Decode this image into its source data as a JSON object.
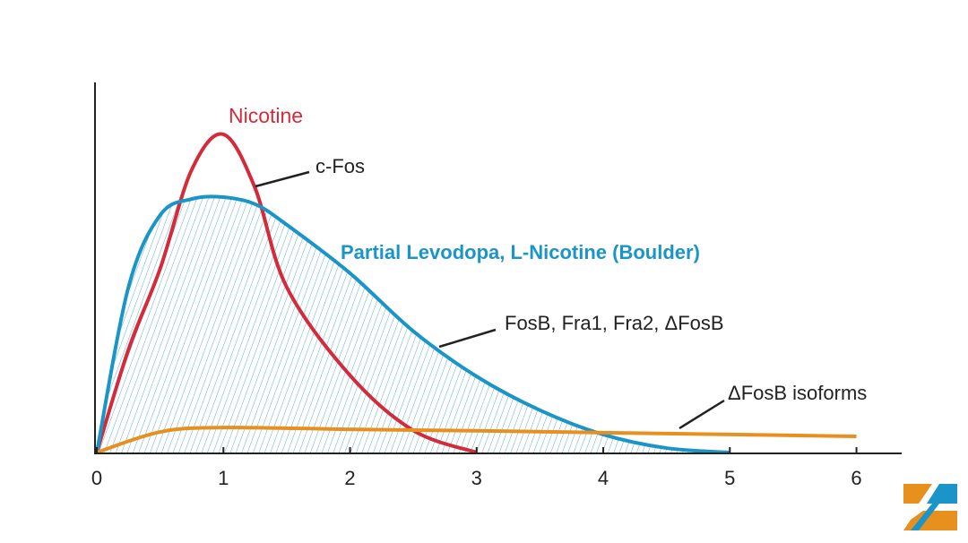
{
  "chart_data": {
    "type": "line",
    "xlim": [
      0,
      6.35
    ],
    "xticks": [
      0,
      1,
      2,
      3,
      4,
      5,
      6
    ],
    "ylim": [
      0,
      100
    ],
    "series": [
      {
        "name": "Nicotine",
        "color": "#d42a3a",
        "x": [
          0,
          0.25,
          0.5,
          0.75,
          1.0,
          1.25,
          1.5,
          2.0,
          2.5,
          3.0
        ],
        "values": [
          0,
          28,
          50,
          77,
          86.6,
          72,
          45,
          21,
          6,
          0
        ]
      },
      {
        "name": "Partial Levodopa, L-Nicotine (Boulder)",
        "color": "#1b95c8",
        "x": [
          0,
          0.25,
          0.5,
          0.75,
          1.0,
          1.25,
          1.5,
          2.0,
          2.5,
          3.0,
          3.5,
          4.0,
          4.5,
          5.0
        ],
        "values": [
          0,
          45,
          64.6,
          69,
          69.5,
          67.6,
          62,
          48.8,
          33,
          20.7,
          11.5,
          4.9,
          1.2,
          0
        ]
      },
      {
        "name": "ΔFosB isoforms",
        "color": "#e8901e",
        "x": [
          0,
          0.5,
          1.0,
          2.0,
          3.0,
          4.0,
          5.0,
          6.0
        ],
        "values": [
          0,
          5.6,
          6.8,
          6.3,
          5.9,
          5.4,
          4.9,
          4.4
        ]
      }
    ],
    "annotations": [
      "c-Fos",
      "FosB, Fra1, Fra2, ΔFosB"
    ]
  }
}
